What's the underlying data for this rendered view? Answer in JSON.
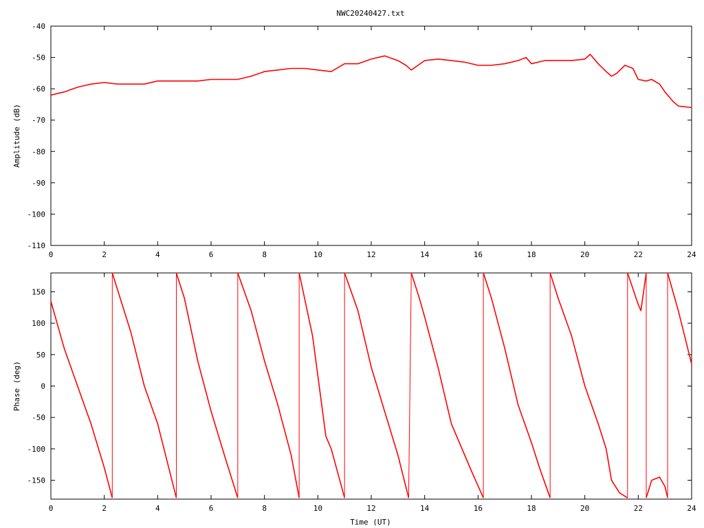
{
  "title": "NWC20240427.txt",
  "colors": {
    "series": "#ff0000",
    "axis": "#000000",
    "background": "#ffffff"
  },
  "chart_data": [
    {
      "type": "line",
      "name": "amplitude",
      "ylabel": "Amplitude (dB)",
      "xlabel": "",
      "xlim": [
        0,
        24
      ],
      "ylim": [
        -110,
        -40
      ],
      "xticks": [
        0,
        2,
        4,
        6,
        8,
        10,
        12,
        14,
        16,
        18,
        20,
        22,
        24
      ],
      "yticks": [
        -40,
        -50,
        -60,
        -70,
        -80,
        -90,
        -100,
        -110
      ],
      "ytick_labels": [
        "-40",
        "-50",
        "-60",
        "-70",
        "-80",
        "-90",
        "-100",
        "-110"
      ],
      "grid": false,
      "x": [
        0,
        0.5,
        1.0,
        1.5,
        2.0,
        2.5,
        3.0,
        3.5,
        4.0,
        4.5,
        5.0,
        5.5,
        6.0,
        6.5,
        7.0,
        7.5,
        8.0,
        8.5,
        9.0,
        9.5,
        10.0,
        10.5,
        11.0,
        11.5,
        12.0,
        12.5,
        13.0,
        13.3,
        13.5,
        14.0,
        14.5,
        15.0,
        15.5,
        16.0,
        16.5,
        17.0,
        17.5,
        17.8,
        18.0,
        18.5,
        19.0,
        19.5,
        20.0,
        20.2,
        20.5,
        20.8,
        21.0,
        21.2,
        21.5,
        21.8,
        22.0,
        22.3,
        22.5,
        22.8,
        23.0,
        23.3,
        23.5,
        24.0
      ],
      "y": [
        -62,
        -61,
        -59.5,
        -58.5,
        -58,
        -58.5,
        -58.5,
        -58.5,
        -57.5,
        -57.5,
        -57.5,
        -57.5,
        -57,
        -57,
        -57,
        -56,
        -54.5,
        -54,
        -53.5,
        -53.5,
        -54,
        -54.5,
        -52,
        -52,
        -50.5,
        -49.5,
        -51,
        -52.5,
        -54,
        -51,
        -50.5,
        -51,
        -51.5,
        -52.5,
        -52.5,
        -52,
        -51,
        -50,
        -52,
        -51,
        -51,
        -51,
        -50.5,
        -49,
        -52,
        -54.5,
        -56,
        -55,
        -52.5,
        -53.5,
        -57,
        -57.5,
        -57,
        -58.5,
        -61,
        -64,
        -65.5,
        -66
      ]
    },
    {
      "type": "line",
      "name": "phase",
      "ylabel": "Phase (deg)",
      "xlabel": "Time (UT)",
      "xlim": [
        0,
        24
      ],
      "ylim": [
        -180,
        180
      ],
      "xticks": [
        0,
        2,
        4,
        6,
        8,
        10,
        12,
        14,
        16,
        18,
        20,
        22,
        24
      ],
      "yticks": [
        150,
        100,
        50,
        0,
        -50,
        -100,
        -150
      ],
      "ytick_labels": [
        "150",
        "100",
        "50",
        "0",
        "-50",
        "-100",
        "-150"
      ],
      "grid": false,
      "segments": [
        {
          "x": [
            0,
            0.5,
            1.0,
            1.5,
            2.0,
            2.3
          ],
          "y": [
            135,
            60,
            0,
            -60,
            -130,
            -178
          ]
        },
        {
          "x": [
            2.3,
            3.0,
            3.5,
            4.0,
            4.7
          ],
          "y": [
            180,
            85,
            0,
            -60,
            -178
          ]
        },
        {
          "x": [
            4.7,
            5.0,
            5.5,
            6.0,
            6.5,
            7.0
          ],
          "y": [
            180,
            140,
            40,
            -40,
            -110,
            -178
          ]
        },
        {
          "x": [
            7.0,
            7.5,
            8.0,
            8.5,
            9.0,
            9.3
          ],
          "y": [
            180,
            120,
            40,
            -30,
            -110,
            -178
          ]
        },
        {
          "x": [
            9.3,
            9.8,
            10.3,
            10.5,
            11.0
          ],
          "y": [
            180,
            80,
            -80,
            -100,
            -178
          ]
        },
        {
          "x": [
            11.0,
            11.5,
            12.0,
            12.5,
            13.0,
            13.4
          ],
          "y": [
            180,
            120,
            30,
            -40,
            -110,
            -178
          ]
        },
        {
          "x": [
            13.5,
            13.8,
            14.0,
            14.5,
            15.0,
            15.5,
            15.8,
            16.2
          ],
          "y": [
            180,
            140,
            110,
            30,
            -60,
            -110,
            -140,
            -178
          ]
        },
        {
          "x": [
            16.2,
            16.5,
            17.0,
            17.5,
            18.0,
            18.3,
            18.7
          ],
          "y": [
            180,
            140,
            60,
            -30,
            -90,
            -130,
            -178
          ]
        },
        {
          "x": [
            18.7,
            19.0,
            19.5,
            20.0,
            20.5,
            20.8,
            21.0,
            21.3,
            21.6
          ],
          "y": [
            180,
            140,
            80,
            0,
            -60,
            -100,
            -150,
            -170,
            -178
          ]
        },
        {
          "x": [
            21.6,
            22.0,
            22.1,
            22.3
          ],
          "y": [
            180,
            130,
            120,
            180
          ]
        },
        {
          "x": [
            22.3,
            22.5,
            22.8,
            23.0,
            23.1
          ],
          "y": [
            -178,
            -150,
            -145,
            -160,
            -178
          ]
        },
        {
          "x": [
            23.1,
            23.5,
            24.0
          ],
          "y": [
            180,
            120,
            35
          ]
        }
      ]
    }
  ]
}
